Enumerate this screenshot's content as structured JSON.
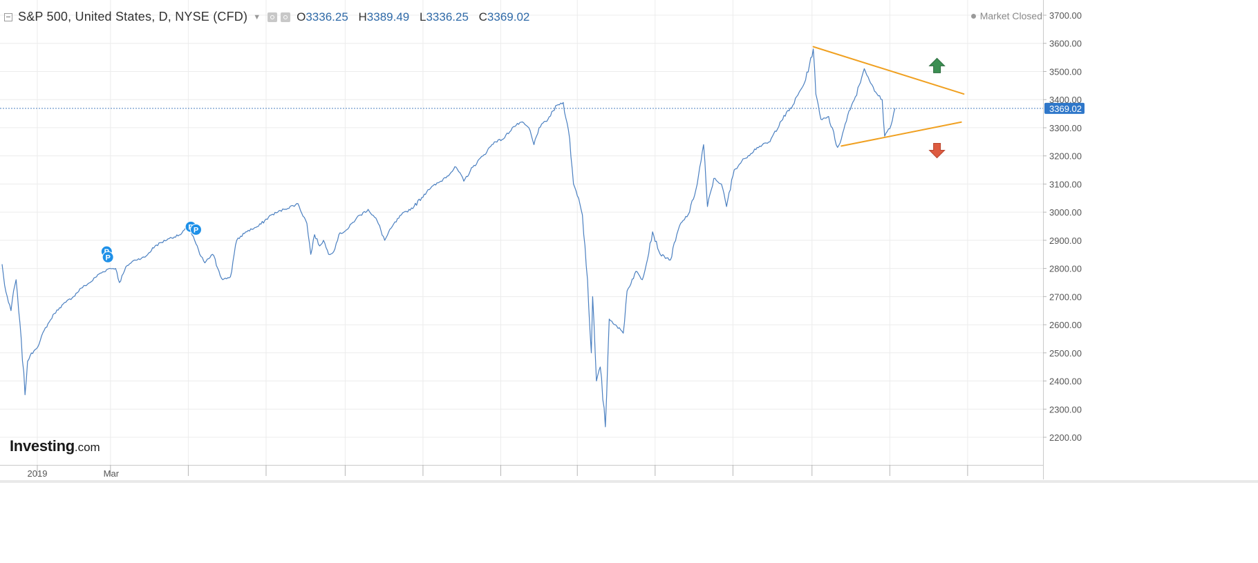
{
  "header": {
    "symbol": "S&P 500, United States, D, NYSE (CFD)",
    "ohlc": [
      {
        "label": "O",
        "value": "3336.25"
      },
      {
        "label": "H",
        "value": "3389.49"
      },
      {
        "label": "L",
        "value": "3336.25"
      },
      {
        "label": "C",
        "value": "3369.02"
      }
    ],
    "market_status": "Market Closed"
  },
  "logo": {
    "main": "Investing",
    "suffix": ".com"
  },
  "colors": {
    "line": "#4a7fc0",
    "price_tag": "#2f77c9",
    "trendline": "#f0a020",
    "arrow_up": "#3b8f52",
    "arrow_down": "#dd5b40",
    "marker": "#1e90e8",
    "grid": "#ececec"
  },
  "icons": [
    "collapse-icon",
    "settings-icon",
    "visibility-icon",
    "arrow-up-icon",
    "arrow-down-icon",
    "market-closed-dot-icon"
  ],
  "chart_data": {
    "type": "line",
    "title": "S&P 500, United States, D, NYSE (CFD)",
    "ylim": [
      2100,
      3760
    ],
    "y_ticks": [
      "3700.00",
      "3600.00",
      "3500.00",
      "3400.00",
      "3300.00",
      "3200.00",
      "3100.00",
      "3000.00",
      "2900.00",
      "2800.00",
      "2700.00",
      "2600.00",
      "2500.00",
      "2400.00",
      "2300.00",
      "2200.00"
    ],
    "x_ticks": [
      "2019",
      "Mar"
    ],
    "last_price": "3369.02",
    "grid": true,
    "series": [
      {
        "x": [
          "2018-12-06",
          "2018-12-08",
          "2018-12-11",
          "2018-12-13",
          "2018-12-15",
          "2018-12-17",
          "2018-12-19",
          "2018-12-21",
          "2018-12-24",
          "2018-12-26",
          "2018-12-28",
          "2018-12-31",
          "2019-01-04",
          "2019-01-08",
          "2019-01-12",
          "2019-01-16",
          "2019-01-20",
          "2019-01-25",
          "2019-01-31",
          "2019-02-06",
          "2019-02-13",
          "2019-02-20",
          "2019-02-28",
          "2019-03-05",
          "2019-03-08",
          "2019-03-14",
          "2019-03-20",
          "2019-03-28",
          "2019-04-05",
          "2019-04-15",
          "2019-04-25",
          "2019-05-01",
          "2019-05-06",
          "2019-05-10",
          "2019-05-14",
          "2019-05-20",
          "2019-05-28",
          "2019-06-03",
          "2019-06-08",
          "2019-06-15",
          "2019-06-25",
          "2019-07-05",
          "2019-07-15",
          "2019-07-26",
          "2019-08-02",
          "2019-08-05",
          "2019-08-08",
          "2019-08-12",
          "2019-08-15",
          "2019-08-19",
          "2019-08-23",
          "2019-08-27",
          "2019-09-03",
          "2019-09-10",
          "2019-09-19",
          "2019-09-26",
          "2019-10-02",
          "2019-10-08",
          "2019-10-15",
          "2019-10-25",
          "2019-11-05",
          "2019-11-15",
          "2019-11-27",
          "2019-12-03",
          "2019-12-10",
          "2019-12-18",
          "2019-12-27",
          "2020-01-03",
          "2020-01-10",
          "2020-01-17",
          "2020-01-23",
          "2020-01-27",
          "2020-01-31",
          "2020-02-07",
          "2020-02-14",
          "2020-02-19",
          "2020-02-24",
          "2020-02-27",
          "2020-03-02",
          "2020-03-05",
          "2020-03-09",
          "2020-03-12",
          "2020-03-13",
          "2020-03-16",
          "2020-03-19",
          "2020-03-23",
          "2020-03-26",
          "2020-03-31",
          "2020-04-06",
          "2020-04-09",
          "2020-04-16",
          "2020-04-21",
          "2020-04-29",
          "2020-05-05",
          "2020-05-13",
          "2020-05-20",
          "2020-05-28",
          "2020-06-03",
          "2020-06-08",
          "2020-06-11",
          "2020-06-16",
          "2020-06-22",
          "2020-06-26",
          "2020-07-02",
          "2020-07-10",
          "2020-07-20",
          "2020-07-30",
          "2020-08-07",
          "2020-08-17",
          "2020-08-27",
          "2020-09-02",
          "2020-09-04",
          "2020-09-08",
          "2020-09-14",
          "2020-09-21",
          "2020-09-24",
          "2020-09-30",
          "2020-10-05",
          "2020-10-12",
          "2020-10-15",
          "2020-10-20",
          "2020-10-26",
          "2020-10-28",
          "2020-11-02",
          "2020-11-05"
        ],
        "y": [
          2815,
          2740,
          2680,
          2650,
          2720,
          2760,
          2650,
          2550,
          2351,
          2470,
          2490,
          2507,
          2531,
          2580,
          2610,
          2640,
          2660,
          2680,
          2700,
          2730,
          2750,
          2780,
          2800,
          2800,
          2750,
          2810,
          2830,
          2840,
          2880,
          2905,
          2920,
          2950,
          2900,
          2850,
          2820,
          2850,
          2760,
          2770,
          2900,
          2930,
          2950,
          2990,
          3010,
          3030,
          2960,
          2850,
          2920,
          2880,
          2900,
          2850,
          2860,
          2920,
          2940,
          2980,
          3010,
          2970,
          2900,
          2950,
          2990,
          3020,
          3080,
          3110,
          3160,
          3110,
          3160,
          3200,
          3250,
          3260,
          3300,
          3320,
          3300,
          3240,
          3300,
          3330,
          3380,
          3390,
          3260,
          3100,
          3050,
          2990,
          2760,
          2500,
          2700,
          2400,
          2450,
          2237,
          2620,
          2600,
          2570,
          2720,
          2790,
          2760,
          2930,
          2850,
          2830,
          2950,
          3000,
          3100,
          3240,
          3020,
          3120,
          3100,
          3020,
          3150,
          3190,
          3230,
          3250,
          3320,
          3380,
          3470,
          3580,
          3420,
          3330,
          3340,
          3230,
          3260,
          3360,
          3410,
          3510,
          3480,
          3430,
          3400,
          3270,
          3310,
          3369
        ]
      }
    ],
    "markers": [
      {
        "label": "P",
        "x": "2019-02-26",
        "y": 2860
      },
      {
        "label": "P",
        "x": "2019-02-27",
        "y": 2840
      },
      {
        "label": "P",
        "x": "2019-05-03",
        "y": 2948
      },
      {
        "label": "P",
        "x": "2019-05-07",
        "y": 2938
      }
    ],
    "annotations": [
      {
        "type": "trendline",
        "from": {
          "x": "2020-09-02",
          "y": 3588
        },
        "to": {
          "x": "2020-12-29",
          "y": 3420
        }
      },
      {
        "type": "trendline",
        "from": {
          "x": "2020-09-24",
          "y": 3235
        },
        "to": {
          "x": "2020-12-27",
          "y": 3320
        }
      },
      {
        "type": "arrow-up",
        "x": "2020-12-08",
        "y": 3520
      },
      {
        "type": "arrow-down",
        "x": "2020-12-08",
        "y": 3220
      }
    ]
  }
}
